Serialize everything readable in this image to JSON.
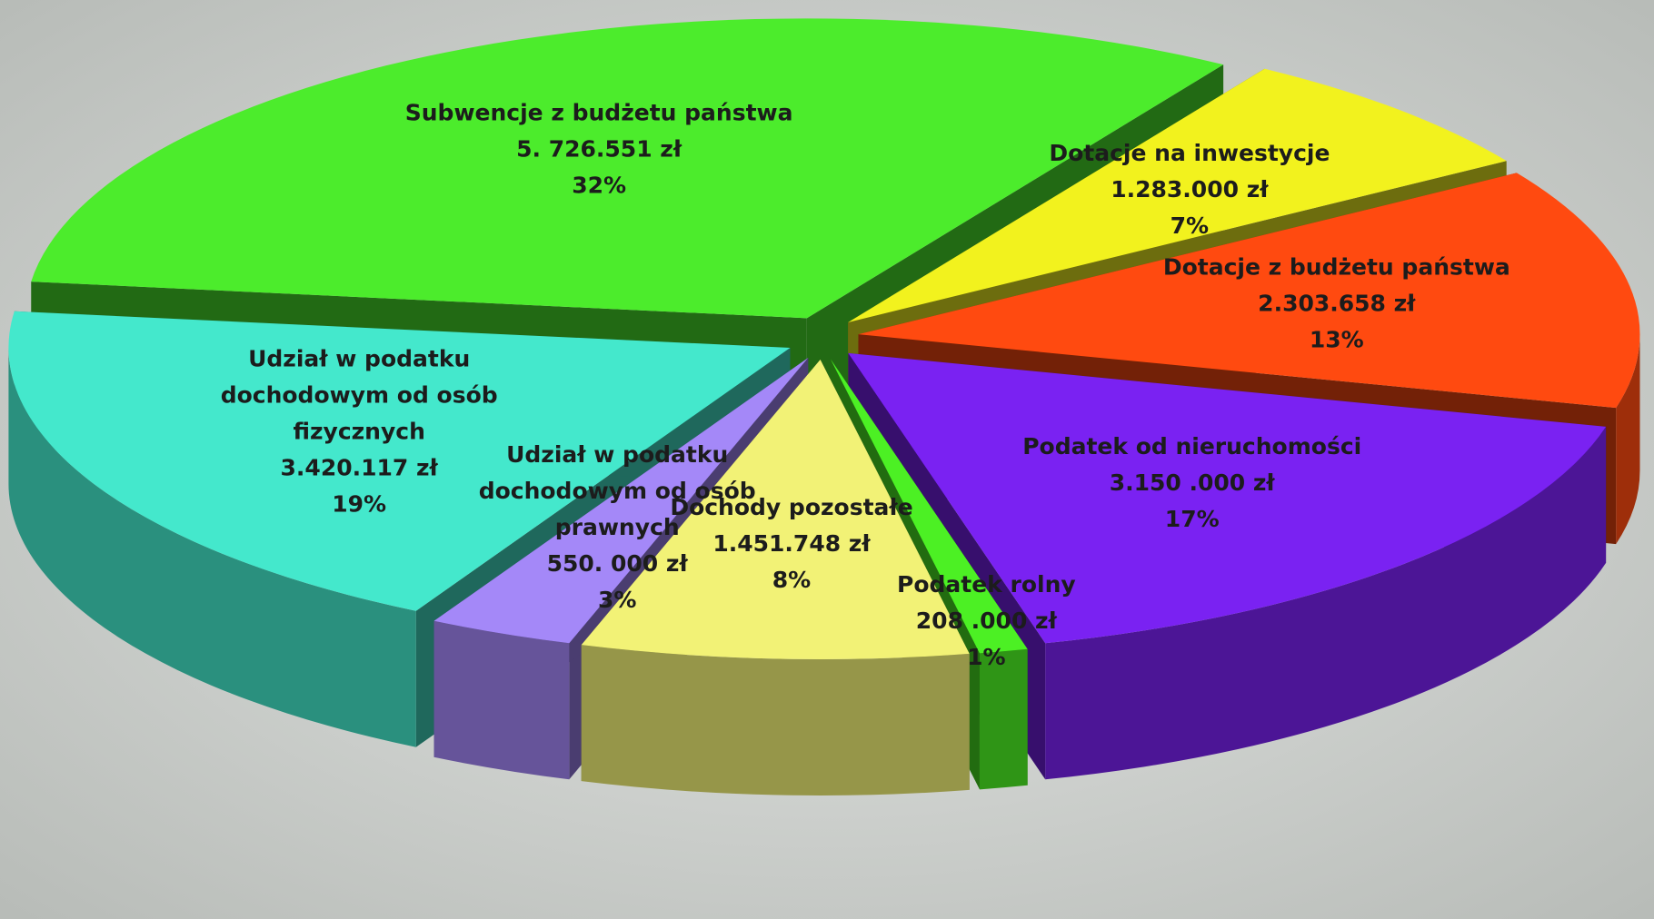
{
  "chart_data": {
    "type": "pie3d",
    "categories": [
      "Subwencje z budżetu państwa",
      "Dotacje na  inwestycje",
      "Dotacje z budżetu państwa",
      "Podatek od nieruchomości",
      "Podatek rolny",
      "Dochody pozostałe",
      "Udział w podatku dochodowym od osób prawnych",
      "Udział w podatku dochodowym od osób fizycznych"
    ],
    "values": [
      32,
      7,
      13,
      17,
      1,
      8,
      3,
      19
    ],
    "value_labels": [
      "32%",
      "7%",
      "13%",
      "17%",
      "1%",
      "8%",
      "3%",
      "19%"
    ],
    "amount_labels": [
      "5. 726.551 zł",
      "1.283.000 zł",
      "2.303.658 zł",
      "3.150 .000 zł",
      "208 .000 zł",
      "1.451.748 zł",
      "550. 000 zł",
      "3.420.117 zł"
    ],
    "colors": [
      "#4cec2c",
      "#f2f21e",
      "#ff4a10",
      "#7a22f2",
      "#4cf024",
      "#f2f276",
      "#a488f8",
      "#44e8cc"
    ]
  }
}
